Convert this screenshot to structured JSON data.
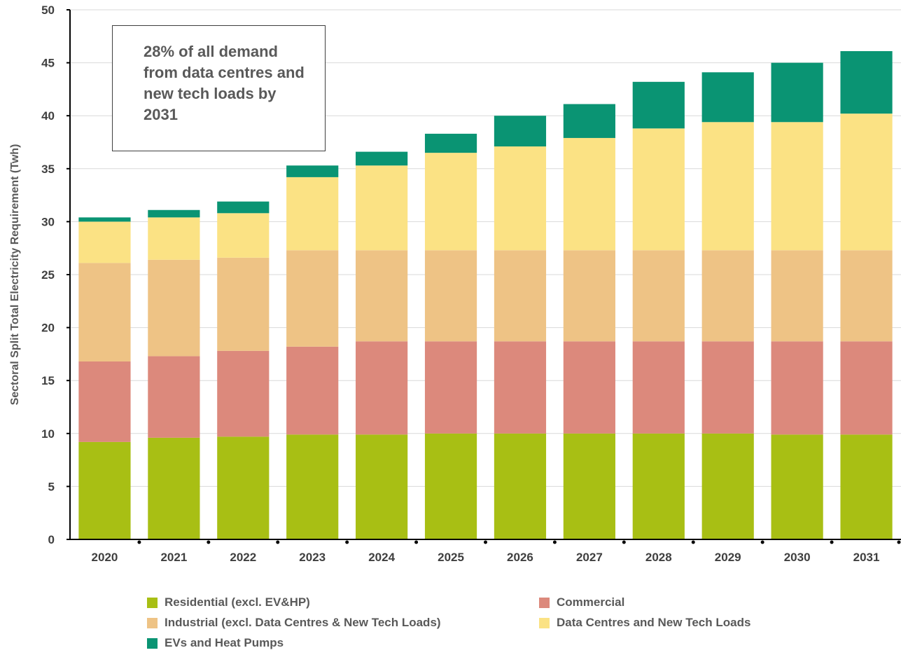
{
  "chart_data": {
    "type": "bar",
    "stacked": true,
    "ylabel": "Sectoral Split Total Electricity Requirement (Twh)",
    "ylim": [
      0,
      50
    ],
    "yticks": [
      0,
      5,
      10,
      15,
      20,
      25,
      30,
      35,
      40,
      45,
      50
    ],
    "grid": true,
    "legend_position": "bottom",
    "annotation": "28% of all demand from data centres and new tech loads by 2031",
    "categories": [
      "2020",
      "2021",
      "2022",
      "2023",
      "2024",
      "2025",
      "2026",
      "2027",
      "2028",
      "2029",
      "2030",
      "2031"
    ],
    "series": [
      {
        "name": "Residential (excl. EV&HP)",
        "color": "#a8bf14",
        "values": [
          9.2,
          9.6,
          9.7,
          9.9,
          9.9,
          10.0,
          10.0,
          10.0,
          10.0,
          10.0,
          9.9,
          9.9
        ]
      },
      {
        "name": "Commercial",
        "color": "#dc897c",
        "values": [
          7.6,
          7.7,
          8.1,
          8.3,
          8.8,
          8.7,
          8.7,
          8.7,
          8.7,
          8.7,
          8.8,
          8.8
        ]
      },
      {
        "name": "Industrial (excl. Data Centres & New Tech Loads)",
        "color": "#eec385",
        "values": [
          9.3,
          9.1,
          8.8,
          9.1,
          8.6,
          8.6,
          8.6,
          8.6,
          8.6,
          8.6,
          8.6,
          8.6
        ]
      },
      {
        "name": "Data Centres and New Tech Loads",
        "color": "#fbe284",
        "values": [
          3.9,
          4.0,
          4.2,
          6.9,
          8.0,
          9.2,
          9.8,
          10.6,
          11.5,
          12.1,
          12.1,
          12.9
        ]
      },
      {
        "name": "EVs and Heat Pumps",
        "color": "#0a9473",
        "values": [
          0.4,
          0.7,
          1.1,
          1.1,
          1.3,
          1.8,
          2.9,
          3.2,
          4.4,
          4.7,
          5.6,
          5.9
        ]
      }
    ]
  }
}
